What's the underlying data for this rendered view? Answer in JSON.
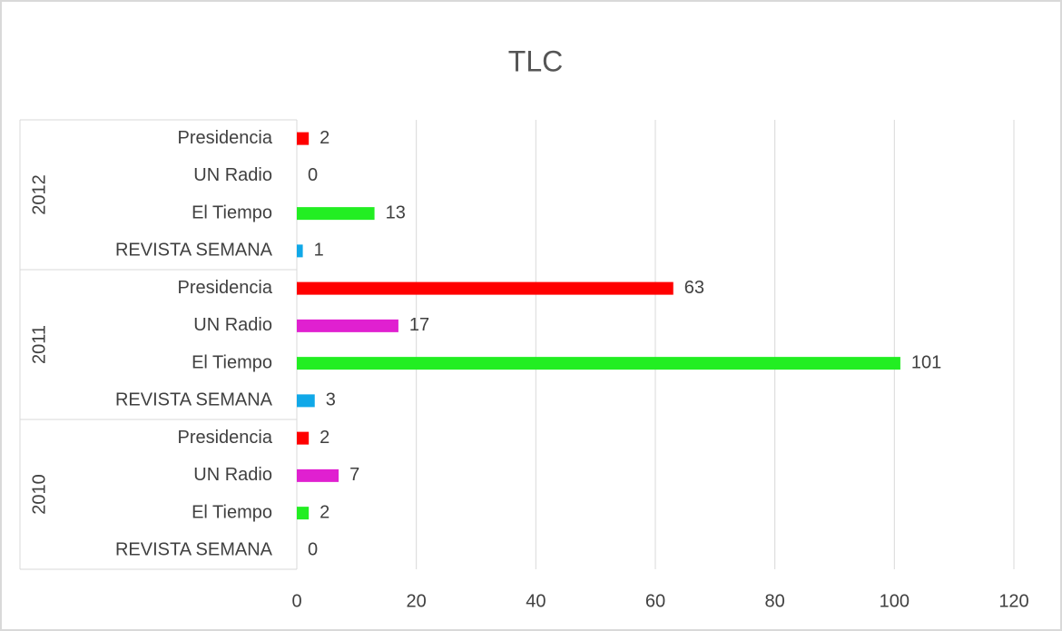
{
  "chart_data": {
    "type": "grouped-hbar",
    "title": "TLC",
    "groups": [
      {
        "name": "2012",
        "categories": [
          "Presidencia",
          "UN Radio",
          "El Tiempo",
          "REVISTA SEMANA"
        ],
        "values": [
          2,
          0,
          13,
          1
        ],
        "colors": [
          "#ff0000",
          "#e020d0",
          "#22ee22",
          "#10a8e8"
        ]
      },
      {
        "name": "2011",
        "categories": [
          "Presidencia",
          "UN Radio",
          "El Tiempo",
          "REVISTA SEMANA"
        ],
        "values": [
          63,
          17,
          101,
          3
        ],
        "colors": [
          "#ff0000",
          "#e020d0",
          "#22ee22",
          "#10a8e8"
        ]
      },
      {
        "name": "2010",
        "categories": [
          "Presidencia",
          "UN Radio",
          "El Tiempo",
          "REVISTA SEMANA"
        ],
        "values": [
          2,
          7,
          2,
          0
        ],
        "colors": [
          "#ff0000",
          "#e020d0",
          "#22ee22",
          "#10a8e8"
        ]
      }
    ],
    "xlim": [
      0,
      120
    ],
    "xticks": [
      0,
      20,
      40,
      60,
      80,
      100,
      120
    ],
    "grid": true
  }
}
